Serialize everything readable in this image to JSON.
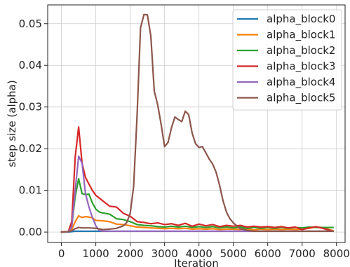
{
  "chart_data": {
    "type": "line",
    "xlabel": "Iteration",
    "ylabel": "step size (alpha)",
    "xlim": [
      -400,
      8250
    ],
    "ylim": [
      -0.0025,
      0.0545
    ],
    "xticks": [
      0,
      1000,
      2000,
      3000,
      4000,
      5000,
      6000,
      7000,
      8000
    ],
    "yticks": [
      0.0,
      0.01,
      0.02,
      0.03,
      0.04,
      0.05
    ],
    "xtick_labels": [
      "0",
      "1000",
      "2000",
      "3000",
      "4000",
      "5000",
      "6000",
      "7000",
      "8000"
    ],
    "ytick_labels": [
      "0.00",
      "0.01",
      "0.02",
      "0.03",
      "0.04",
      "0.05"
    ],
    "grid": true,
    "legend_position": "top-right",
    "series": [
      {
        "name": "alpha_block0",
        "color": "#1f77b4",
        "x": [
          0,
          200,
          400,
          600,
          800,
          1000,
          1500,
          2000,
          2500,
          3000,
          3500,
          4000,
          4500,
          5000,
          5500,
          6000,
          6500,
          7000,
          7500,
          7900
        ],
        "y": [
          0,
          0,
          0.0002,
          0.0002,
          0.0002,
          0.0002,
          0.0002,
          0.0002,
          0.0002,
          0.0002,
          0.0002,
          0.0002,
          0.0002,
          0.0002,
          0.0002,
          0.0002,
          0.0002,
          0.0002,
          0.0002,
          0.0002
        ]
      },
      {
        "name": "alpha_block1",
        "color": "#ff7f0e",
        "x": [
          0,
          200,
          300,
          400,
          500,
          600,
          700,
          800,
          900,
          1000,
          1200,
          1400,
          1600,
          1800,
          2000,
          2200,
          2400,
          2600,
          2800,
          3000,
          3200,
          3400,
          3600,
          3800,
          4000,
          4200,
          4400,
          4600,
          4800,
          5000,
          5200,
          5400,
          5600,
          5800,
          6000,
          6200,
          6400,
          6600,
          6800,
          7000,
          7200,
          7400,
          7600,
          7900
        ],
        "y": [
          0,
          0.0001,
          0.0006,
          0.0025,
          0.0039,
          0.0035,
          0.0037,
          0.0036,
          0.0034,
          0.0028,
          0.0027,
          0.0025,
          0.0019,
          0.0018,
          0.0015,
          0.0012,
          0.0011,
          0.001,
          0.0009,
          0.0008,
          0.0009,
          0.0008,
          0.0009,
          0.0007,
          0.0008,
          0.0007,
          0.0008,
          0.0006,
          0.0007,
          0.0007,
          0.0006,
          0.0008,
          0.0005,
          0.0007,
          0.0006,
          0.0007,
          0.0006,
          0.0007,
          0.0006,
          0.0007,
          0.0009,
          0.0012,
          0.0011,
          0.0003
        ]
      },
      {
        "name": "alpha_block2",
        "color": "#2ca02c",
        "x": [
          0,
          200,
          300,
          400,
          500,
          600,
          700,
          800,
          900,
          1000,
          1100,
          1200,
          1400,
          1600,
          1800,
          2000,
          2200,
          2400,
          2600,
          2800,
          3000,
          3200,
          3400,
          3600,
          3800,
          4000,
          4200,
          4400,
          4600,
          4800,
          5000,
          5200,
          5400,
          5600,
          5800,
          6000,
          6200,
          6400,
          6600,
          6800,
          7000,
          7200,
          7400,
          7600,
          7900
        ],
        "y": [
          0,
          0.0001,
          0.0015,
          0.0085,
          0.0128,
          0.0092,
          0.009,
          0.0091,
          0.007,
          0.0055,
          0.0048,
          0.0046,
          0.0043,
          0.0032,
          0.003,
          0.0025,
          0.0018,
          0.0016,
          0.0015,
          0.0013,
          0.0012,
          0.0014,
          0.0012,
          0.0014,
          0.0011,
          0.0013,
          0.0011,
          0.0013,
          0.001,
          0.0012,
          0.001,
          0.0012,
          0.0009,
          0.0011,
          0.0009,
          0.0011,
          0.0009,
          0.0011,
          0.0009,
          0.0011,
          0.001,
          0.0012,
          0.0011,
          0.0011,
          0.0011
        ]
      },
      {
        "name": "alpha_block3",
        "color": "#d62728",
        "x": [
          0,
          200,
          300,
          400,
          500,
          600,
          700,
          800,
          900,
          1000,
          1200,
          1400,
          1600,
          1800,
          2000,
          2200,
          2400,
          2600,
          2800,
          3000,
          3200,
          3400,
          3600,
          3800,
          4000,
          4200,
          4400,
          4600,
          4800,
          5000,
          5200,
          5400,
          5600,
          5800,
          6000,
          6200,
          6400,
          6600,
          6800,
          7000,
          7200,
          7400,
          7600,
          7900
        ],
        "y": [
          0,
          0.0001,
          0.0025,
          0.018,
          0.0252,
          0.0165,
          0.0131,
          0.0115,
          0.01,
          0.0088,
          0.0075,
          0.0062,
          0.006,
          0.0045,
          0.0038,
          0.0025,
          0.0023,
          0.002,
          0.0022,
          0.0018,
          0.002,
          0.0016,
          0.0021,
          0.0014,
          0.0019,
          0.0015,
          0.0018,
          0.0013,
          0.0016,
          0.0014,
          0.0016,
          0.0012,
          0.0014,
          0.0012,
          0.0013,
          0.0011,
          0.0013,
          0.001,
          0.0012,
          0.0006,
          0.001,
          0.0013,
          0.0009,
          0.0002
        ]
      },
      {
        "name": "alpha_block4",
        "color": "#9467bd",
        "x": [
          0,
          200,
          300,
          400,
          500,
          600,
          700,
          800,
          900,
          1000,
          1100,
          1200,
          1400,
          1600,
          1800,
          2000,
          2500,
          3000,
          3500,
          4000,
          4500,
          5000,
          5500,
          6000,
          6500,
          7000,
          7500,
          7900
        ],
        "y": [
          0,
          0.0001,
          0.0012,
          0.01,
          0.0182,
          0.0165,
          0.0092,
          0.006,
          0.0035,
          0.0015,
          0.0004,
          0.0002,
          0.0002,
          0.0002,
          0.0002,
          0.0002,
          0.0002,
          0.0002,
          0.0002,
          0.0002,
          0.0002,
          0.0002,
          0.0002,
          0.0002,
          0.0002,
          0.0002,
          0.0002,
          0.0002
        ]
      },
      {
        "name": "alpha_block5",
        "color": "#8c564b",
        "x": [
          0,
          200,
          300,
          400,
          500,
          600,
          800,
          1000,
          1200,
          1400,
          1600,
          1800,
          1900,
          2000,
          2100,
          2200,
          2300,
          2400,
          2500,
          2600,
          2700,
          2800,
          2900,
          3000,
          3100,
          3200,
          3300,
          3400,
          3500,
          3600,
          3700,
          3800,
          3900,
          4000,
          4100,
          4200,
          4300,
          4400,
          4500,
          4600,
          4700,
          4800,
          4900,
          5000,
          5200,
          5400,
          5600,
          5800,
          6000,
          6500,
          7000,
          7500,
          7900
        ],
        "y": [
          0,
          0.0001,
          0.0003,
          0.0008,
          0.0011,
          0.001,
          0.001,
          0.0009,
          0.0006,
          0.0007,
          0.0009,
          0.0015,
          0.0023,
          0.0045,
          0.011,
          0.028,
          0.049,
          0.0522,
          0.0521,
          0.047,
          0.0338,
          0.0305,
          0.0258,
          0.0205,
          0.0215,
          0.025,
          0.0276,
          0.027,
          0.0265,
          0.029,
          0.0282,
          0.0238,
          0.0212,
          0.0203,
          0.0205,
          0.019,
          0.0175,
          0.0163,
          0.0143,
          0.0112,
          0.0075,
          0.0048,
          0.0032,
          0.0022,
          0.0008,
          0.0004,
          0.0002,
          0.0002,
          0.0002,
          0.0002,
          0.0002,
          0.0002,
          0.0002
        ]
      }
    ]
  }
}
